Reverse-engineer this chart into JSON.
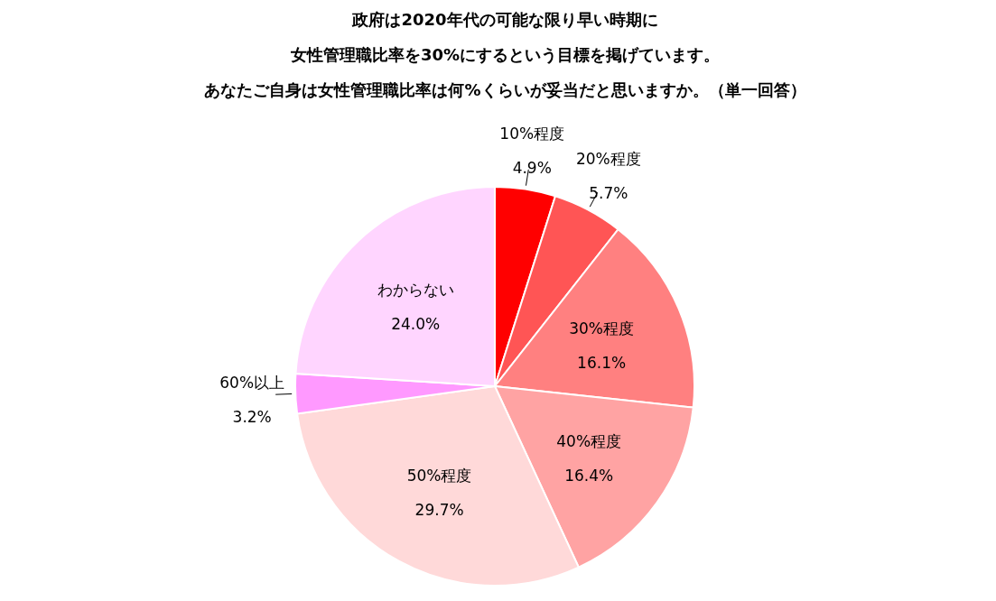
{
  "chart_data": {
    "type": "pie",
    "title": "政府は2020年代の可能な限り早い時期に",
    "subtitle": "女性管理職比率を30%にするという目標を掲げています。",
    "annotations": [
      "あなたご自身は女性管理職比率は何%くらいが妥当だと思いますか。（単一回答）"
    ],
    "categories": [
      "10%程度",
      "20%程度",
      "30%程度",
      "40%程度",
      "50%程度",
      "60%以上",
      "わからない"
    ],
    "values": [
      4.9,
      5.7,
      16.1,
      16.4,
      29.7,
      3.2,
      24.0
    ],
    "value_labels": [
      "4.9%",
      "5.7%",
      "16.1%",
      "16.4%",
      "29.7%",
      "3.2%",
      "24.0%"
    ],
    "colors": [
      "#ff0000",
      "#ff5555",
      "#ff8080",
      "#ffa3a3",
      "#ffd9d9",
      "#ff99ff",
      "#ffd5ff"
    ]
  }
}
